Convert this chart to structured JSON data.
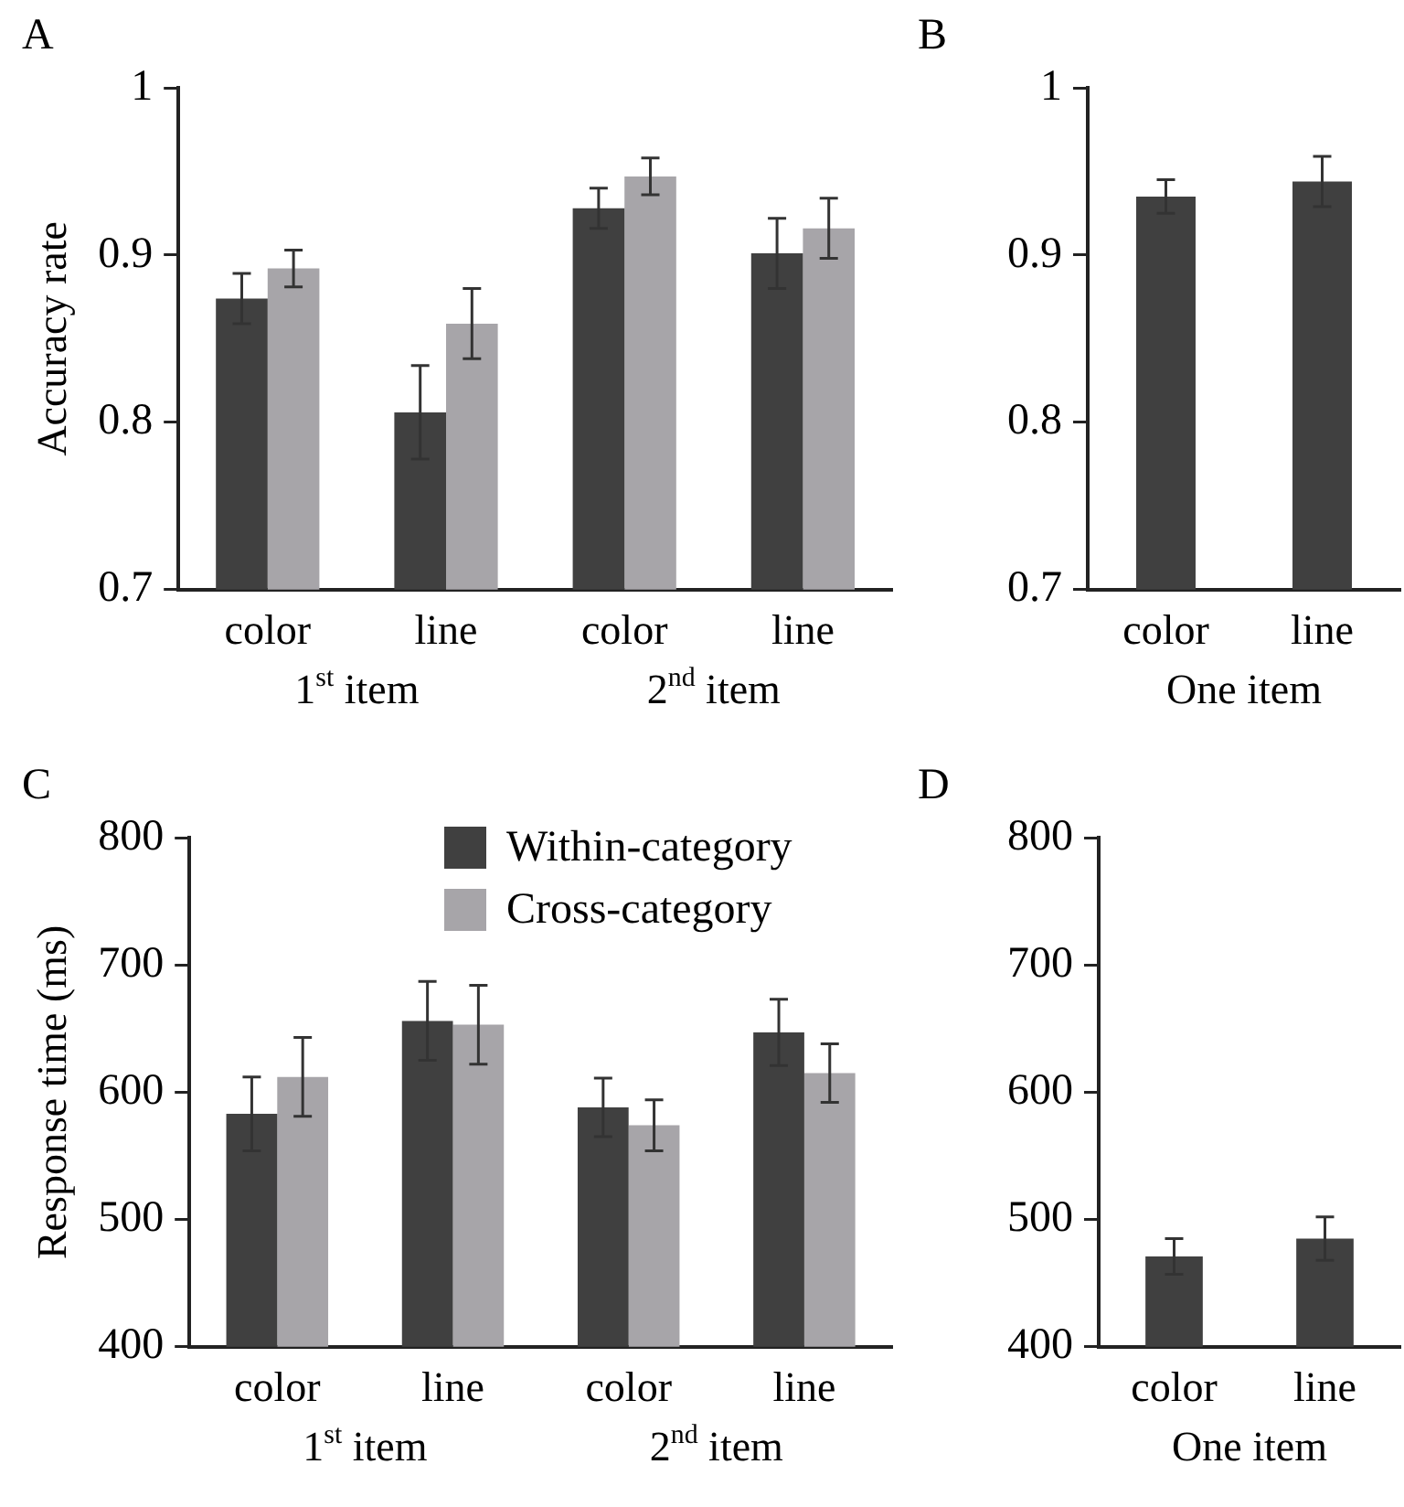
{
  "chart_data": [
    {
      "type": "bar",
      "title": "A",
      "ylabel": "Accuracy rate",
      "categories": [
        "color",
        "line",
        "color",
        "line"
      ],
      "annotations": [
        "1$^{st}$ item",
        "2$^{nd}$ item"
      ],
      "ylim": [
        0.7,
        1
      ],
      "yticks": [
        0.7,
        0.8,
        0.9,
        1
      ],
      "series": [
        {
          "color": "#404040",
          "values": [
            0.874,
            0.806,
            0.928,
            0.901
          ],
          "errors": [
            0.015,
            0.028,
            0.012,
            0.021
          ]
        },
        {
          "color": "#a7a5a9",
          "values": [
            0.892,
            0.859,
            0.947,
            0.916
          ],
          "errors": [
            0.011,
            0.021,
            0.011,
            0.018
          ]
        }
      ]
    },
    {
      "type": "bar",
      "title": "B",
      "xlabel": "One item",
      "categories": [
        "color",
        "line"
      ],
      "ylim": [
        0.7,
        1
      ],
      "yticks": [
        0.7,
        0.8,
        0.9,
        1
      ],
      "series": [
        {
          "color": "#404040",
          "values": [
            0.935,
            0.944
          ],
          "errors": [
            0.01,
            0.015
          ]
        }
      ]
    },
    {
      "type": "bar",
      "title": "C",
      "ylabel": "Response time (ms)",
      "categories": [
        "color",
        "line",
        "color",
        "line"
      ],
      "annotations": [
        "1$^{st}$ item",
        "2$^{nd}$ item"
      ],
      "ylim": [
        400,
        800
      ],
      "yticks": [
        400,
        500,
        600,
        700,
        800
      ],
      "legend": "top right",
      "series": [
        {
          "name": "Within-category",
          "color": "#404040",
          "values": [
            583,
            656,
            588,
            647
          ],
          "errors": [
            29,
            31,
            23,
            26
          ]
        },
        {
          "name": "Cross-category",
          "color": "#a7a5a9",
          "values": [
            612,
            653,
            574,
            615
          ],
          "errors": [
            31,
            31,
            20,
            23
          ]
        }
      ]
    },
    {
      "type": "bar",
      "title": "D",
      "xlabel": "One item",
      "categories": [
        "color",
        "line"
      ],
      "ylim": [
        400,
        800
      ],
      "yticks": [
        400,
        500,
        600,
        700,
        800
      ],
      "series": [
        {
          "color": "#404040",
          "values": [
            471,
            485
          ],
          "errors": [
            14,
            17
          ]
        }
      ]
    }
  ]
}
